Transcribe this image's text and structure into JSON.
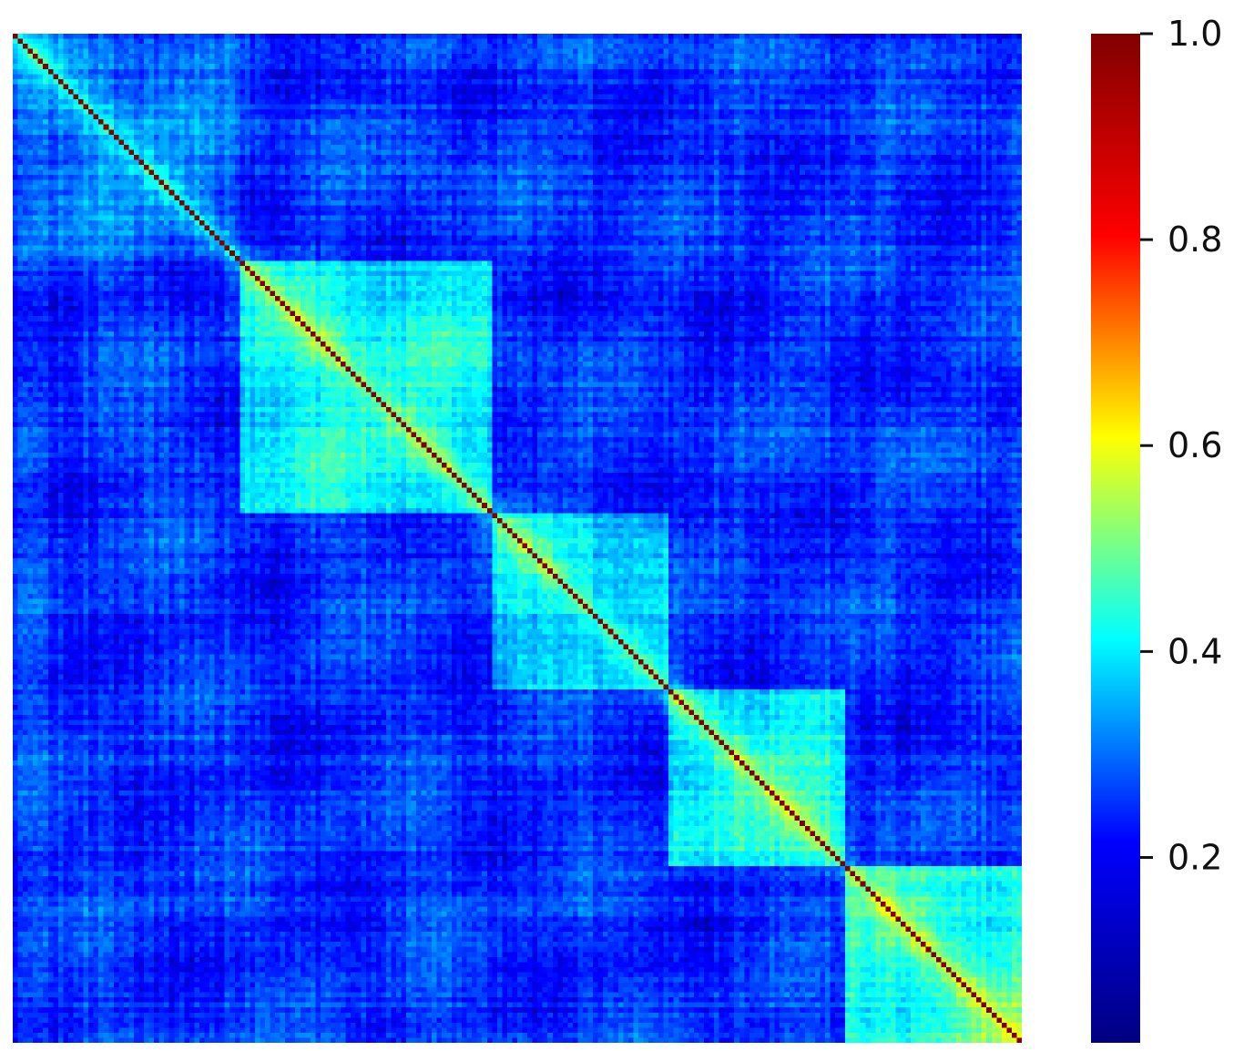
{
  "chart_data": {
    "type": "heatmap",
    "title": "",
    "xlabel": "",
    "ylabel": "",
    "matrix_size": 200,
    "diagonal_value": 1.0,
    "value_range": [
      0.02,
      1.0
    ],
    "colormap": "jet",
    "colormap_stops": [
      "#000080",
      "#0000ff",
      "#00ffff",
      "#ffff00",
      "#ff0000",
      "#800000"
    ],
    "block_structure": [
      {
        "range": [
          0,
          45
        ],
        "avg_corr": 0.24
      },
      {
        "range": [
          45,
          95
        ],
        "avg_corr": 0.38
      },
      {
        "range": [
          95,
          130
        ],
        "avg_corr": 0.34
      },
      {
        "range": [
          130,
          165
        ],
        "avg_corr": 0.39
      },
      {
        "range": [
          165,
          200
        ],
        "avg_corr": 0.43
      }
    ],
    "background_corr": 0.19,
    "colorbar": {
      "min": 0.02,
      "max": 1.0,
      "ticks": [
        {
          "value": 0.2,
          "label": "0.2"
        },
        {
          "value": 0.4,
          "label": "0.4"
        },
        {
          "value": 0.6,
          "label": "0.6"
        },
        {
          "value": 0.8,
          "label": "0.8"
        },
        {
          "value": 1.0,
          "label": "1.0"
        }
      ]
    },
    "axis_tick_labels": false,
    "grid": false
  }
}
